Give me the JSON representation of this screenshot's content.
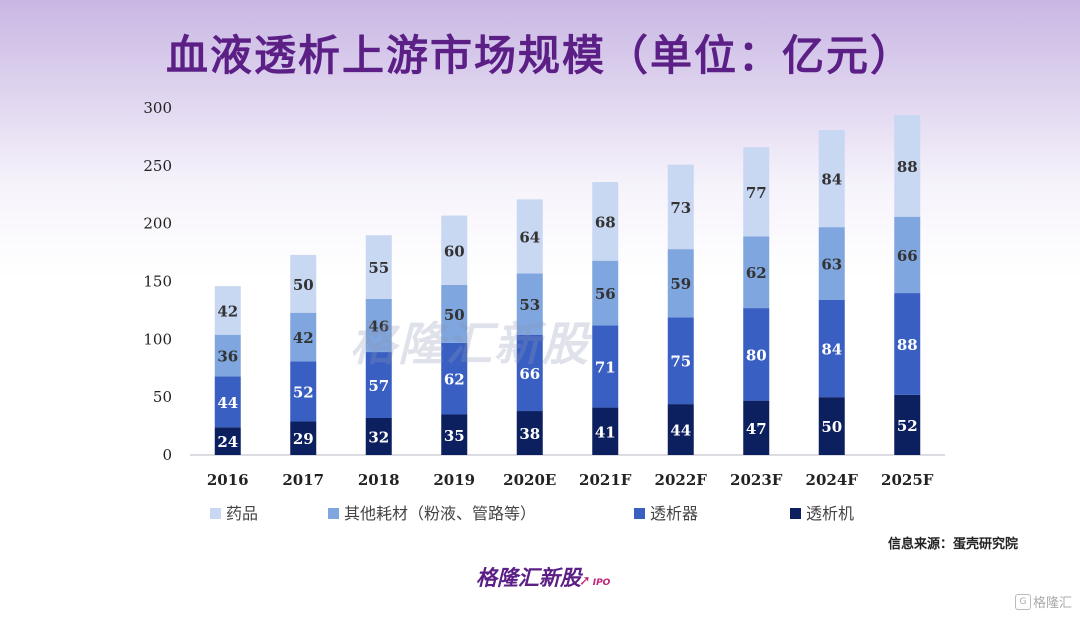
{
  "title": "血液透析上游市场规模（单位：亿元）",
  "source": "信息来源：蛋壳研究院",
  "brand": {
    "name": "格隆汇新股",
    "sub": "IPO"
  },
  "watermark": "格隆汇新股",
  "corner_label": "格隆汇",
  "colors": {
    "title": "#5b1f86",
    "drugs": "#c8d7f2",
    "consumables": "#7fa6de",
    "dialyzer": "#3a5fc2",
    "machine": "#0c1f5e"
  },
  "chart_data": {
    "type": "bar",
    "stacked": true,
    "title": "血液透析上游市场规模（单位：亿元）",
    "categories": [
      "2016",
      "2017",
      "2018",
      "2019",
      "2020E",
      "2021F",
      "2022F",
      "2023F",
      "2024F",
      "2025F"
    ],
    "ylim": [
      0,
      300
    ],
    "yticks": [
      0,
      50,
      100,
      150,
      200,
      250,
      300
    ],
    "legend_position": "bottom",
    "grid": false,
    "series": [
      {
        "name": "透析机",
        "color": "#0c1f5e",
        "values": [
          24,
          29,
          32,
          35,
          38,
          41,
          44,
          47,
          50,
          52
        ]
      },
      {
        "name": "透析器",
        "color": "#3a5fc2",
        "values": [
          44,
          52,
          57,
          62,
          66,
          71,
          75,
          80,
          84,
          88
        ]
      },
      {
        "name": "其他耗材（粉液、管路等）",
        "color": "#7fa6de",
        "values": [
          36,
          42,
          46,
          50,
          53,
          56,
          59,
          62,
          63,
          66
        ]
      },
      {
        "name": "药品",
        "color": "#c8d7f2",
        "values": [
          42,
          50,
          55,
          60,
          64,
          68,
          73,
          77,
          84,
          88
        ]
      }
    ],
    "legend_order": [
      "药品",
      "其他耗材（粉液、管路等）",
      "透析器",
      "透析机"
    ]
  }
}
